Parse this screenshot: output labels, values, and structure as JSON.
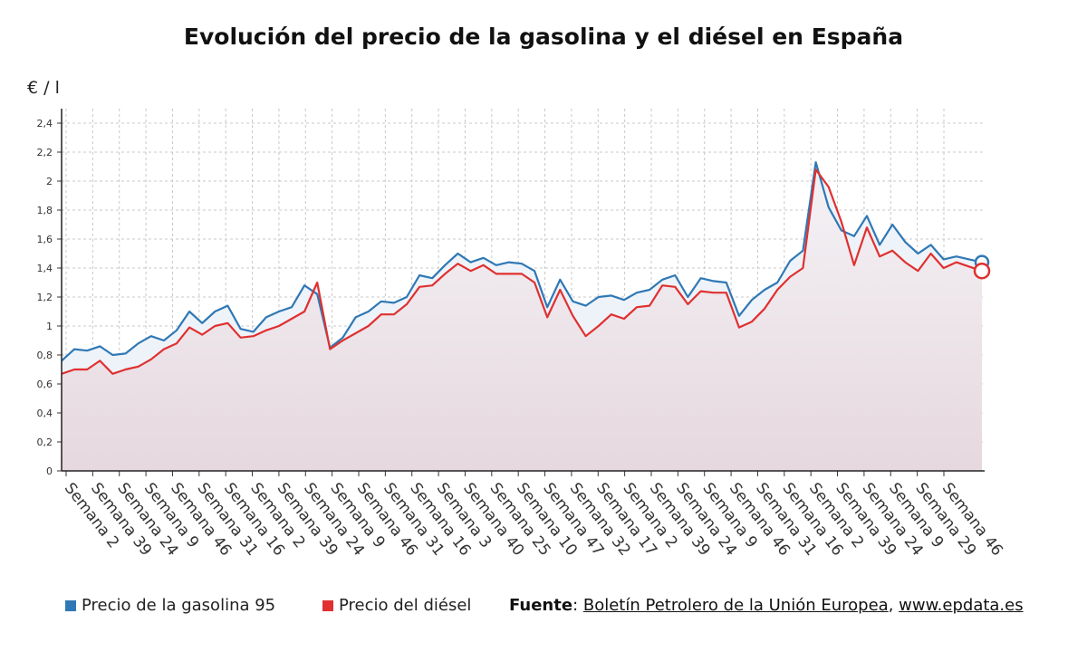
{
  "title": "Evolución del precio de la gasolina y el diésel en España",
  "unit_label": "€ / l",
  "legend": [
    {
      "label": "Precio de la gasolina 95",
      "color": "#2f78b5"
    },
    {
      "label": "Precio del diésel",
      "color": "#e03030"
    }
  ],
  "source": {
    "label": "Fuente",
    "sep1": ": ",
    "name": "Boletín Petrolero de la Unión Europea",
    "sep2": ", ",
    "site": "www.epdata.es"
  },
  "chart_data": {
    "type": "line",
    "x_tick_labels": [
      "Semana 2",
      "Semana 39",
      "Semana 24",
      "Semana 9",
      "Semana 46",
      "Semana 31",
      "Semana 16",
      "Semana 2",
      "Semana 39",
      "Semana 24",
      "Semana 9",
      "Semana 46",
      "Semana 31",
      "Semana 16",
      "Semana 3",
      "Semana 40",
      "Semana 25",
      "Semana 10",
      "Semana 47",
      "Semana 32",
      "Semana 17",
      "Semana 2",
      "Semana 39",
      "Semana 24",
      "Semana 9",
      "Semana 46",
      "Semana 31",
      "Semana 16",
      "Semana 2",
      "Semana 39",
      "Semana 24",
      "Semana 9",
      "Semana 29",
      "Semana 46"
    ],
    "y_ticks": [
      "0",
      "0,2",
      "0,4",
      "0,6",
      "0,8",
      "1",
      "1,2",
      "1,4",
      "1,6",
      "1,8",
      "2",
      "2,2",
      "2,4"
    ],
    "ylim": [
      0,
      2.5
    ],
    "grid": true,
    "series": [
      {
        "name": "Precio de la gasolina 95",
        "color": "#2f78b5",
        "values": [
          0.76,
          0.84,
          0.83,
          0.86,
          0.8,
          0.81,
          0.88,
          0.93,
          0.9,
          0.97,
          1.1,
          1.02,
          1.1,
          1.14,
          0.98,
          0.96,
          1.06,
          1.1,
          1.13,
          1.28,
          1.22,
          0.85,
          0.92,
          1.06,
          1.1,
          1.17,
          1.16,
          1.2,
          1.35,
          1.33,
          1.42,
          1.5,
          1.44,
          1.47,
          1.42,
          1.44,
          1.43,
          1.38,
          1.13,
          1.32,
          1.17,
          1.14,
          1.2,
          1.21,
          1.18,
          1.23,
          1.25,
          1.32,
          1.35,
          1.2,
          1.33,
          1.31,
          1.3,
          1.07,
          1.18,
          1.25,
          1.3,
          1.45,
          1.52,
          2.13,
          1.82,
          1.66,
          1.62,
          1.76,
          1.56,
          1.7,
          1.58,
          1.5,
          1.56,
          1.46,
          1.48,
          1.46,
          1.44
        ],
        "end_marker": true
      },
      {
        "name": "Precio del diésel",
        "color": "#e03030",
        "values": [
          0.67,
          0.7,
          0.7,
          0.76,
          0.67,
          0.7,
          0.72,
          0.77,
          0.84,
          0.88,
          0.99,
          0.94,
          1.0,
          1.02,
          0.92,
          0.93,
          0.97,
          1.0,
          1.05,
          1.1,
          1.3,
          0.84,
          0.9,
          0.95,
          1.0,
          1.08,
          1.08,
          1.15,
          1.27,
          1.28,
          1.36,
          1.43,
          1.38,
          1.42,
          1.36,
          1.36,
          1.36,
          1.3,
          1.06,
          1.25,
          1.07,
          0.93,
          1.0,
          1.08,
          1.05,
          1.13,
          1.14,
          1.28,
          1.27,
          1.15,
          1.24,
          1.23,
          1.23,
          0.99,
          1.03,
          1.12,
          1.25,
          1.34,
          1.4,
          2.08,
          1.96,
          1.72,
          1.42,
          1.68,
          1.48,
          1.52,
          1.44,
          1.38,
          1.5,
          1.4,
          1.44,
          1.41,
          1.38
        ],
        "end_marker": true
      }
    ]
  }
}
